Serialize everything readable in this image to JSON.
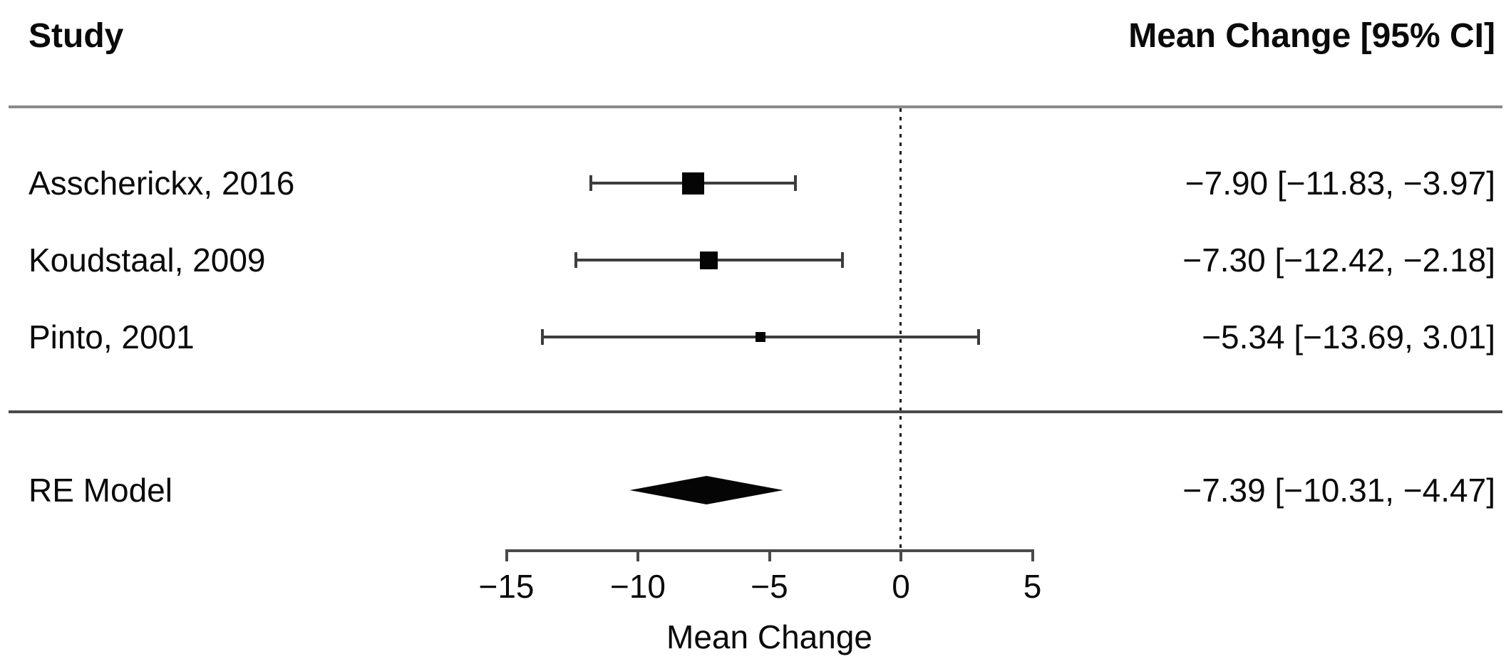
{
  "chart_data": {
    "type": "forest",
    "column_headers": {
      "study": "Study",
      "estimate": "Mean Change [95% CI]"
    },
    "xlabel": "Mean Change",
    "axis": {
      "xlim": [
        -15,
        5
      ],
      "ticks": [
        -15,
        -10,
        -5,
        0,
        5
      ],
      "tick_labels": [
        "−15",
        "−10",
        "−5",
        "0",
        "5"
      ],
      "reference_line": 0,
      "reference_line_style": "dotted"
    },
    "studies": [
      {
        "label": "Asscherickx, 2016",
        "estimate": -7.9,
        "ci_lower": -11.83,
        "ci_upper": -3.97,
        "annotation": "−7.90 [−11.83, −3.97]",
        "marker_size_px": 31
      },
      {
        "label": "Koudstaal, 2009",
        "estimate": -7.3,
        "ci_lower": -12.42,
        "ci_upper": -2.18,
        "annotation": "−7.30 [−12.42, −2.18]",
        "marker_size_px": 25
      },
      {
        "label": "Pinto, 2001",
        "estimate": -5.34,
        "ci_lower": -13.69,
        "ci_upper": 3.01,
        "annotation": "−5.34 [−13.69, 3.01]",
        "marker_size_px": 14
      }
    ],
    "summary": {
      "label": "RE Model",
      "estimate": -7.39,
      "ci_lower": -10.31,
      "ci_upper": -4.47,
      "annotation": "−7.39 [−10.31, −4.47]"
    }
  }
}
